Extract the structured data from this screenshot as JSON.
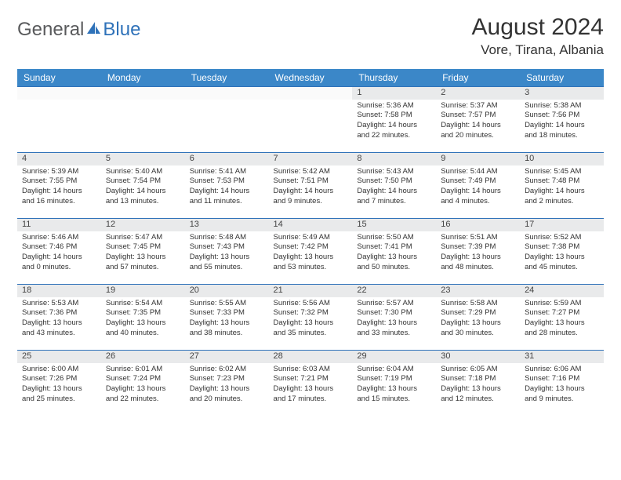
{
  "brand": {
    "general": "General",
    "blue": "Blue"
  },
  "title": "August 2024",
  "location": "Vore, Tirana, Albania",
  "colors": {
    "header_bg": "#3b87c8",
    "header_border": "#2f72b9",
    "daynum_bg": "#e9eaeb",
    "brand_gray": "#595a5c",
    "brand_blue": "#2f72b9"
  },
  "dayHeaders": [
    "Sunday",
    "Monday",
    "Tuesday",
    "Wednesday",
    "Thursday",
    "Friday",
    "Saturday"
  ],
  "weeks": [
    [
      null,
      null,
      null,
      null,
      {
        "n": "1",
        "sr": "5:36 AM",
        "ss": "7:58 PM",
        "dl": "14 hours and 22 minutes."
      },
      {
        "n": "2",
        "sr": "5:37 AM",
        "ss": "7:57 PM",
        "dl": "14 hours and 20 minutes."
      },
      {
        "n": "3",
        "sr": "5:38 AM",
        "ss": "7:56 PM",
        "dl": "14 hours and 18 minutes."
      }
    ],
    [
      {
        "n": "4",
        "sr": "5:39 AM",
        "ss": "7:55 PM",
        "dl": "14 hours and 16 minutes."
      },
      {
        "n": "5",
        "sr": "5:40 AM",
        "ss": "7:54 PM",
        "dl": "14 hours and 13 minutes."
      },
      {
        "n": "6",
        "sr": "5:41 AM",
        "ss": "7:53 PM",
        "dl": "14 hours and 11 minutes."
      },
      {
        "n": "7",
        "sr": "5:42 AM",
        "ss": "7:51 PM",
        "dl": "14 hours and 9 minutes."
      },
      {
        "n": "8",
        "sr": "5:43 AM",
        "ss": "7:50 PM",
        "dl": "14 hours and 7 minutes."
      },
      {
        "n": "9",
        "sr": "5:44 AM",
        "ss": "7:49 PM",
        "dl": "14 hours and 4 minutes."
      },
      {
        "n": "10",
        "sr": "5:45 AM",
        "ss": "7:48 PM",
        "dl": "14 hours and 2 minutes."
      }
    ],
    [
      {
        "n": "11",
        "sr": "5:46 AM",
        "ss": "7:46 PM",
        "dl": "14 hours and 0 minutes."
      },
      {
        "n": "12",
        "sr": "5:47 AM",
        "ss": "7:45 PM",
        "dl": "13 hours and 57 minutes."
      },
      {
        "n": "13",
        "sr": "5:48 AM",
        "ss": "7:43 PM",
        "dl": "13 hours and 55 minutes."
      },
      {
        "n": "14",
        "sr": "5:49 AM",
        "ss": "7:42 PM",
        "dl": "13 hours and 53 minutes."
      },
      {
        "n": "15",
        "sr": "5:50 AM",
        "ss": "7:41 PM",
        "dl": "13 hours and 50 minutes."
      },
      {
        "n": "16",
        "sr": "5:51 AM",
        "ss": "7:39 PM",
        "dl": "13 hours and 48 minutes."
      },
      {
        "n": "17",
        "sr": "5:52 AM",
        "ss": "7:38 PM",
        "dl": "13 hours and 45 minutes."
      }
    ],
    [
      {
        "n": "18",
        "sr": "5:53 AM",
        "ss": "7:36 PM",
        "dl": "13 hours and 43 minutes."
      },
      {
        "n": "19",
        "sr": "5:54 AM",
        "ss": "7:35 PM",
        "dl": "13 hours and 40 minutes."
      },
      {
        "n": "20",
        "sr": "5:55 AM",
        "ss": "7:33 PM",
        "dl": "13 hours and 38 minutes."
      },
      {
        "n": "21",
        "sr": "5:56 AM",
        "ss": "7:32 PM",
        "dl": "13 hours and 35 minutes."
      },
      {
        "n": "22",
        "sr": "5:57 AM",
        "ss": "7:30 PM",
        "dl": "13 hours and 33 minutes."
      },
      {
        "n": "23",
        "sr": "5:58 AM",
        "ss": "7:29 PM",
        "dl": "13 hours and 30 minutes."
      },
      {
        "n": "24",
        "sr": "5:59 AM",
        "ss": "7:27 PM",
        "dl": "13 hours and 28 minutes."
      }
    ],
    [
      {
        "n": "25",
        "sr": "6:00 AM",
        "ss": "7:26 PM",
        "dl": "13 hours and 25 minutes."
      },
      {
        "n": "26",
        "sr": "6:01 AM",
        "ss": "7:24 PM",
        "dl": "13 hours and 22 minutes."
      },
      {
        "n": "27",
        "sr": "6:02 AM",
        "ss": "7:23 PM",
        "dl": "13 hours and 20 minutes."
      },
      {
        "n": "28",
        "sr": "6:03 AM",
        "ss": "7:21 PM",
        "dl": "13 hours and 17 minutes."
      },
      {
        "n": "29",
        "sr": "6:04 AM",
        "ss": "7:19 PM",
        "dl": "13 hours and 15 minutes."
      },
      {
        "n": "30",
        "sr": "6:05 AM",
        "ss": "7:18 PM",
        "dl": "13 hours and 12 minutes."
      },
      {
        "n": "31",
        "sr": "6:06 AM",
        "ss": "7:16 PM",
        "dl": "13 hours and 9 minutes."
      }
    ]
  ],
  "labels": {
    "sunrise": "Sunrise: ",
    "sunset": "Sunset: ",
    "daylight": "Daylight: "
  }
}
